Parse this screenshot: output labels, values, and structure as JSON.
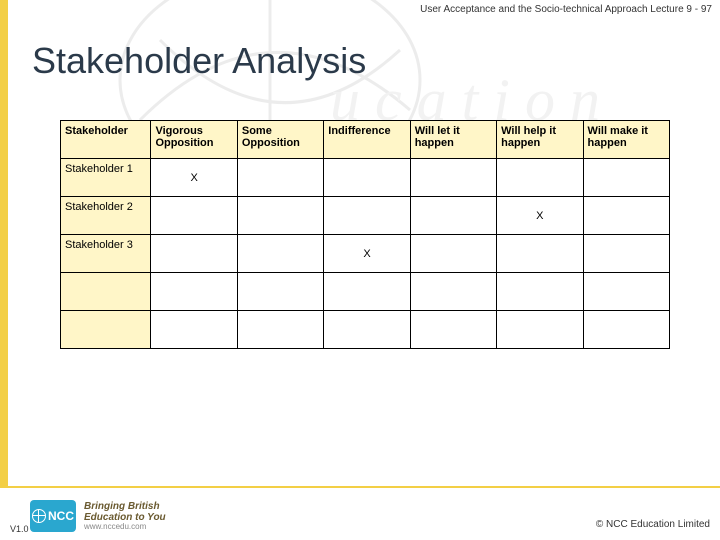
{
  "colors": {
    "accent_yellow": "#f3cf45",
    "header_fill": "#fff6c8",
    "title_color": "#2b3a4a",
    "logo_blue": "#2aa7cf",
    "watermark": "#ececec"
  },
  "header_text": "User Acceptance and the Socio-technical Approach Lecture 9 - 97",
  "title": "Stakeholder Analysis",
  "table": {
    "type": "table",
    "columns": [
      "Stakeholder",
      "Vigorous Opposition",
      "Some Opposition",
      "Indifference",
      "Will let it happen",
      "Will help it happen",
      "Will make it happen"
    ],
    "rows": [
      {
        "label": "Stakeholder 1",
        "cells": [
          "X",
          "",
          "",
          "",
          "",
          ""
        ]
      },
      {
        "label": "Stakeholder 2",
        "cells": [
          "",
          "",
          "",
          "",
          "X",
          ""
        ]
      },
      {
        "label": "Stakeholder 3",
        "cells": [
          "",
          "",
          "X",
          "",
          "",
          ""
        ]
      },
      {
        "label": "",
        "cells": [
          "",
          "",
          "",
          "",
          "",
          ""
        ]
      },
      {
        "label": "",
        "cells": [
          "",
          "",
          "",
          "",
          "",
          ""
        ]
      }
    ],
    "header_bg": "#fff6c8",
    "border_color": "#000000",
    "font_size": 11
  },
  "logo": {
    "badge_text": "NCC",
    "tagline1": "Bringing British",
    "tagline2": "Education to You",
    "url": "www.nccedu.com",
    "sub": "education"
  },
  "version": "V1.0",
  "copyright": "©  NCC Education Limited"
}
